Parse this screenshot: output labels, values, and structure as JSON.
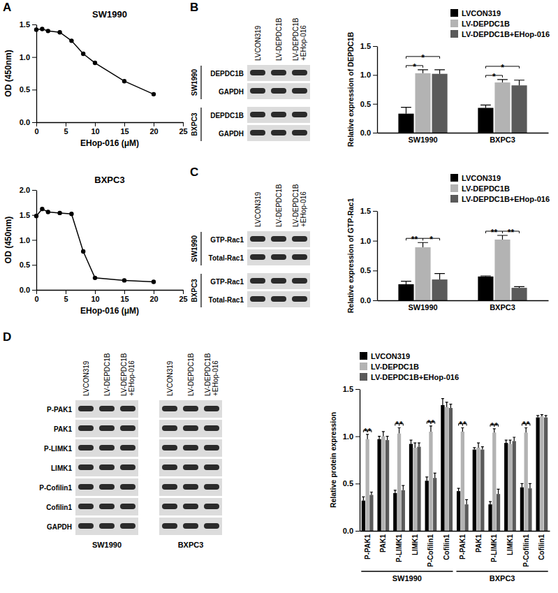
{
  "panels": [
    "A",
    "B",
    "C",
    "D"
  ],
  "chart_data": [
    {
      "type": "line",
      "title": "SW1990",
      "x": [
        0,
        1,
        2,
        4,
        6,
        8,
        10,
        15,
        20
      ],
      "series": [
        {
          "color": "#000000",
          "marker": "circle",
          "line_style": "solid",
          "values": [
            1.42,
            1.43,
            1.4,
            1.38,
            1.25,
            1.05,
            0.91,
            0.63,
            0.43
          ]
        }
      ],
      "xlim": [
        0,
        25
      ],
      "xticks": [
        0,
        5,
        10,
        15,
        20,
        25
      ],
      "ylim": [
        0,
        1.5
      ],
      "yticks": [
        {
          "value": 0,
          "label": "0.0"
        },
        0.5,
        {
          "value": 1,
          "label": "1.0"
        },
        1.5
      ],
      "x_label": "EHop-016 (μM)",
      "y_label": "OD (450nm)"
    },
    {
      "type": "line",
      "title": "BXPC3",
      "x": [
        0,
        1,
        2,
        4,
        6,
        8,
        10,
        15,
        20
      ],
      "series": [
        {
          "color": "#000000",
          "marker": "circle",
          "line_style": "solid",
          "values": [
            1.48,
            1.62,
            1.56,
            1.54,
            1.52,
            0.77,
            0.24,
            0.19,
            0.16
          ]
        }
      ],
      "xlim": [
        0,
        25
      ],
      "xticks": [
        0,
        5,
        10,
        15,
        20,
        25
      ],
      "ylim": [
        0,
        2.0
      ],
      "yticks": [
        {
          "value": 0,
          "label": "0.0"
        },
        0.5,
        {
          "value": 1,
          "label": "1.0"
        },
        1.5,
        {
          "value": 2,
          "label": "2.0"
        }
      ],
      "x_label": "EHop-016 (μM)",
      "y_label": "OD (450nm)"
    },
    {
      "type": "bar",
      "categories": [
        "SW1990",
        "BXPC3"
      ],
      "series": [
        {
          "name": "LVCON319",
          "color": "#000000",
          "values": [
            0.33,
            0.43
          ],
          "errors": [
            0.11,
            0.05
          ]
        },
        {
          "name": "LV-DEPDC1B",
          "color": "#b3b3b3",
          "values": [
            1.03,
            0.87
          ],
          "errors": [
            0.06,
            0.05
          ]
        },
        {
          "name": "LV-DEPDC1B+EHop-016",
          "color": "#5a5a5a",
          "values": [
            1.02,
            0.82
          ],
          "errors": [
            0.07,
            0.09
          ]
        }
      ],
      "ylim": [
        0,
        1.5
      ],
      "yticks": [
        {
          "value": 0,
          "label": "0.0"
        },
        0.5,
        {
          "value": 1,
          "label": "1.0"
        },
        1.5
      ],
      "y_label": "Relative expression of DEPDC1B",
      "legend": "top right",
      "significance": [
        {
          "category": 0,
          "series": [
            0,
            1
          ],
          "label": "*"
        },
        {
          "category": 0,
          "series": [
            0,
            2
          ],
          "label": "*"
        },
        {
          "category": 1,
          "series": [
            0,
            1
          ],
          "label": "*"
        },
        {
          "category": 1,
          "series": [
            0,
            2
          ],
          "label": "*"
        }
      ]
    },
    {
      "type": "bar",
      "categories": [
        "SW1990",
        "BXPC3"
      ],
      "series": [
        {
          "name": "LVCON319",
          "color": "#000000",
          "values": [
            0.27,
            0.4
          ],
          "errors": [
            0.05,
            0.01
          ]
        },
        {
          "name": "LV-DEPDC1B",
          "color": "#b3b3b3",
          "values": [
            0.89,
            1.02
          ],
          "errors": [
            0.08,
            0.07
          ]
        },
        {
          "name": "LV-DEPDC1B+EHop-016",
          "color": "#5a5a5a",
          "values": [
            0.35,
            0.21
          ],
          "errors": [
            0.1,
            0.02
          ]
        }
      ],
      "ylim": [
        0,
        1.5
      ],
      "yticks": [
        {
          "value": 0,
          "label": "0.0"
        },
        0.5,
        {
          "value": 1,
          "label": "1.0"
        },
        1.5
      ],
      "y_label": "Relative expression of GTP-Rac1",
      "legend": "top right",
      "significance": [
        {
          "category": 0,
          "series": [
            0,
            1
          ],
          "label": "**"
        },
        {
          "category": 0,
          "series": [
            1,
            2
          ],
          "label": "*"
        },
        {
          "category": 1,
          "series": [
            0,
            1
          ],
          "label": "**"
        },
        {
          "category": 1,
          "series": [
            1,
            2
          ],
          "label": "**"
        }
      ]
    },
    {
      "type": "bar",
      "categories": [
        "P-PAK1",
        "PAK1",
        "P-LIMK1",
        "LIMK1",
        "P-Cofilin1",
        "Cofilin1",
        "P-PAK1",
        "PAK1",
        "P-LIMK1",
        "LIMK1",
        "P-Cofilin1",
        "Cofilin1"
      ],
      "groups": [
        {
          "label": "SW1990",
          "categories": [
            0,
            5
          ]
        },
        {
          "label": "BXPC3",
          "categories": [
            6,
            11
          ]
        }
      ],
      "series": [
        {
          "name": "LVCON319",
          "color": "#000000",
          "values": [
            0.32,
            0.97,
            0.4,
            0.92,
            0.53,
            1.33,
            0.42,
            0.86,
            0.28,
            0.93,
            0.46,
            1.2
          ],
          "errors": [
            0.04,
            0.03,
            0.03,
            0.04,
            0.04,
            0.07,
            0.03,
            0.02,
            0.03,
            0.03,
            0.04,
            0.02
          ]
        },
        {
          "name": "LV-DEPDC1B",
          "color": "#b3b3b3",
          "values": [
            0.97,
            1.0,
            1.03,
            0.88,
            1.05,
            1.31,
            1.05,
            0.88,
            1.04,
            0.92,
            1.04,
            1.21
          ],
          "errors": [
            0.05,
            0.05,
            0.06,
            0.05,
            0.06,
            0.05,
            0.04,
            0.05,
            0.04,
            0.04,
            0.05,
            0.02
          ]
        },
        {
          "name": "LV-DEPDC1B+EHop-016",
          "color": "#5a5a5a",
          "values": [
            0.38,
            0.96,
            0.43,
            0.89,
            0.56,
            1.3,
            0.28,
            0.86,
            0.39,
            0.95,
            0.45,
            1.2
          ],
          "errors": [
            0.03,
            0.04,
            0.05,
            0.04,
            0.05,
            0.04,
            0.05,
            0.03,
            0.05,
            0.04,
            0.05,
            0.02
          ]
        }
      ],
      "ylim": [
        0,
        1.5
      ],
      "yticks": [
        {
          "value": 0,
          "label": "0.0"
        },
        0.5,
        {
          "value": 1,
          "label": "1.0"
        },
        1.5
      ],
      "y_label": "Relative protein expression",
      "legend": "top left",
      "significance": [
        {
          "category": 0,
          "series": [
            0,
            1
          ],
          "label": "*"
        },
        {
          "category": 0,
          "series": [
            1,
            2
          ],
          "label": "*"
        },
        {
          "category": 2,
          "series": [
            0,
            1
          ],
          "label": "*"
        },
        {
          "category": 2,
          "series": [
            1,
            2
          ],
          "label": "*"
        },
        {
          "category": 4,
          "series": [
            0,
            1
          ],
          "label": "*"
        },
        {
          "category": 4,
          "series": [
            1,
            2
          ],
          "label": "*"
        },
        {
          "category": 6,
          "series": [
            0,
            1
          ],
          "label": "*"
        },
        {
          "category": 6,
          "series": [
            1,
            2
          ],
          "label": "*"
        },
        {
          "category": 8,
          "series": [
            0,
            1
          ],
          "label": "*"
        },
        {
          "category": 8,
          "series": [
            1,
            2
          ],
          "label": "*"
        },
        {
          "category": 10,
          "series": [
            0,
            1
          ],
          "label": "*"
        },
        {
          "category": 10,
          "series": [
            1,
            2
          ],
          "label": "*"
        }
      ]
    }
  ],
  "blots": [
    {
      "lanes": [
        [
          "LVCON319"
        ],
        [
          "LV-DEPDC1B"
        ],
        [
          "LV-DEPDC1B",
          "+EHop-016"
        ]
      ],
      "groups": [
        {
          "label": "SW1990",
          "rows": [
            "DEPDC1B",
            "GAPDH"
          ]
        },
        {
          "label": "BXPC3",
          "rows": [
            "DEPDC1B",
            "GAPDH"
          ]
        }
      ]
    },
    {
      "lanes": [
        [
          "LVCON319"
        ],
        [
          "LV-DEPDC1B"
        ],
        [
          "LV-DEPDC1B",
          "+EHop-016"
        ]
      ],
      "groups": [
        {
          "label": "SW1990",
          "rows": [
            "GTP-Rac1",
            "Total-Rac1"
          ]
        },
        {
          "label": "BXPC3",
          "rows": [
            "GTP-Rac1",
            "Total-Rac1"
          ]
        }
      ]
    },
    {
      "lanes": [
        [
          "LVCON319"
        ],
        [
          "LV-DEPDC1B"
        ],
        [
          "LV-DEPDC1B",
          "+EHop-016"
        ]
      ],
      "rows": [
        "P-PAK1",
        "PAK1",
        "P-LIMK1",
        "LIMK1",
        "P-Cofilin1",
        "Cofilin1",
        "GAPDH"
      ],
      "cells": [
        "SW1990",
        "BXPC3"
      ]
    }
  ]
}
